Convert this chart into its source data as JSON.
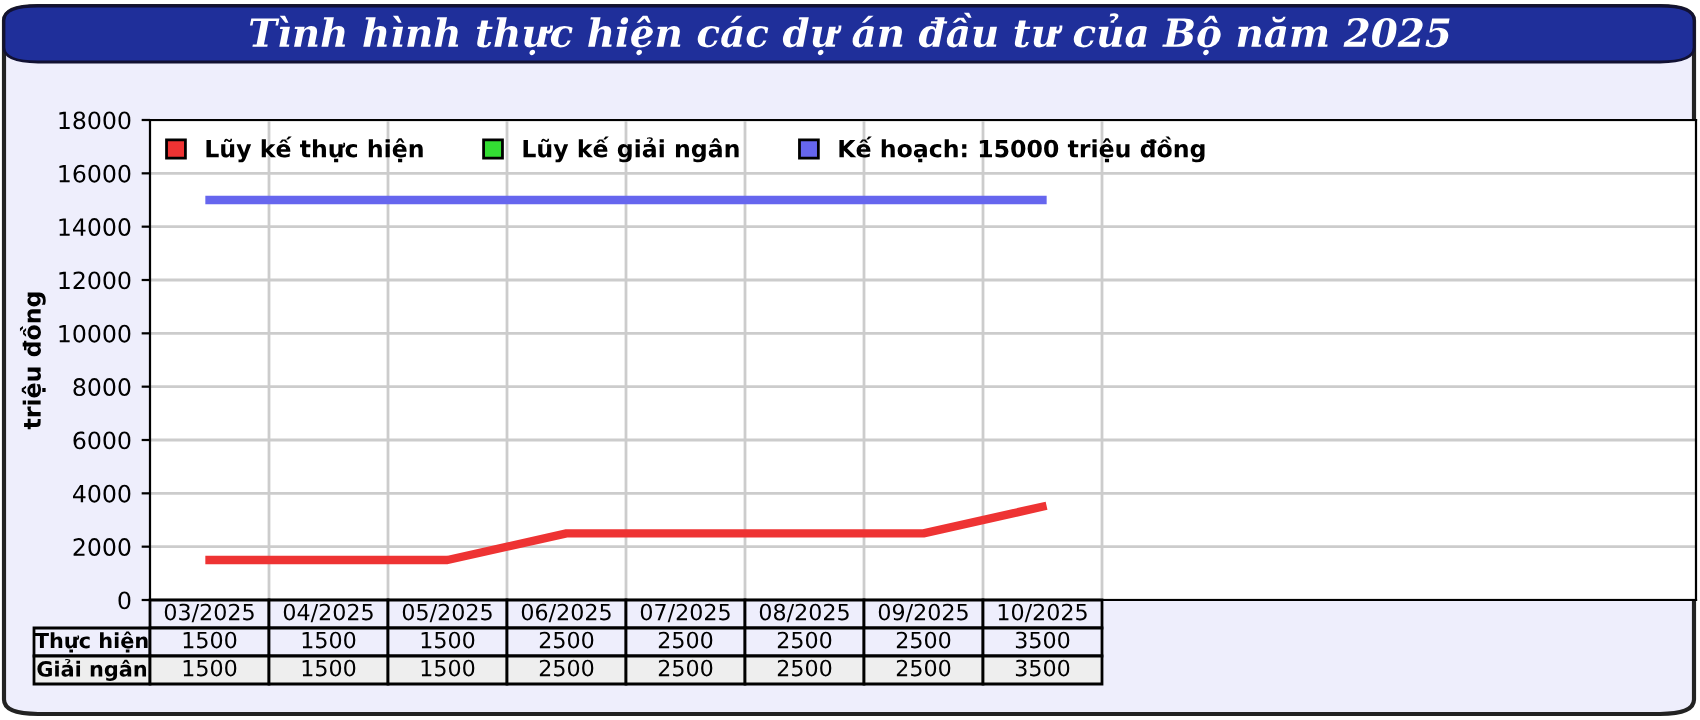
{
  "chart_data": {
    "type": "line",
    "title": "Tình hình thực hiện các dự án đầu tư của Bộ năm 2025",
    "ylabel": "triệu đồng",
    "categories": [
      "03/2025",
      "04/2025",
      "05/2025",
      "06/2025",
      "07/2025",
      "08/2025",
      "09/2025",
      "10/2025"
    ],
    "series": [
      {
        "name": "Lũy kế thực hiện",
        "color": "#ee3333",
        "values": [
          1500,
          1500,
          1500,
          2500,
          2500,
          2500,
          2500,
          3500
        ],
        "value_labels": [
          "1500",
          "1500",
          "1500",
          "2500",
          "2500",
          "2500",
          "2500",
          "3500"
        ]
      },
      {
        "name": "Lũy kế giải ngân",
        "color": "#33dd33",
        "values": [
          null,
          null,
          null,
          null,
          null,
          null,
          null,
          null
        ],
        "value_labels": [
          "1500",
          "1500",
          "1500",
          "2500",
          "2500",
          "2500",
          "2500",
          "3500"
        ]
      },
      {
        "name": "Kế hoạch: 15000 triệu đồng",
        "color": "#6666ee",
        "values": [
          15000,
          15000,
          15000,
          15000,
          15000,
          15000,
          15000,
          15000
        ]
      }
    ],
    "annotations": [
      "Thực hiện",
      "Giải ngân"
    ],
    "ylim": [
      0,
      18000
    ],
    "yticks": [
      0,
      2000,
      4000,
      6000,
      8000,
      10000,
      12000,
      14000,
      16000,
      18000
    ],
    "grid": true,
    "legend": "top",
    "marker": "none",
    "line_style": "solid"
  }
}
